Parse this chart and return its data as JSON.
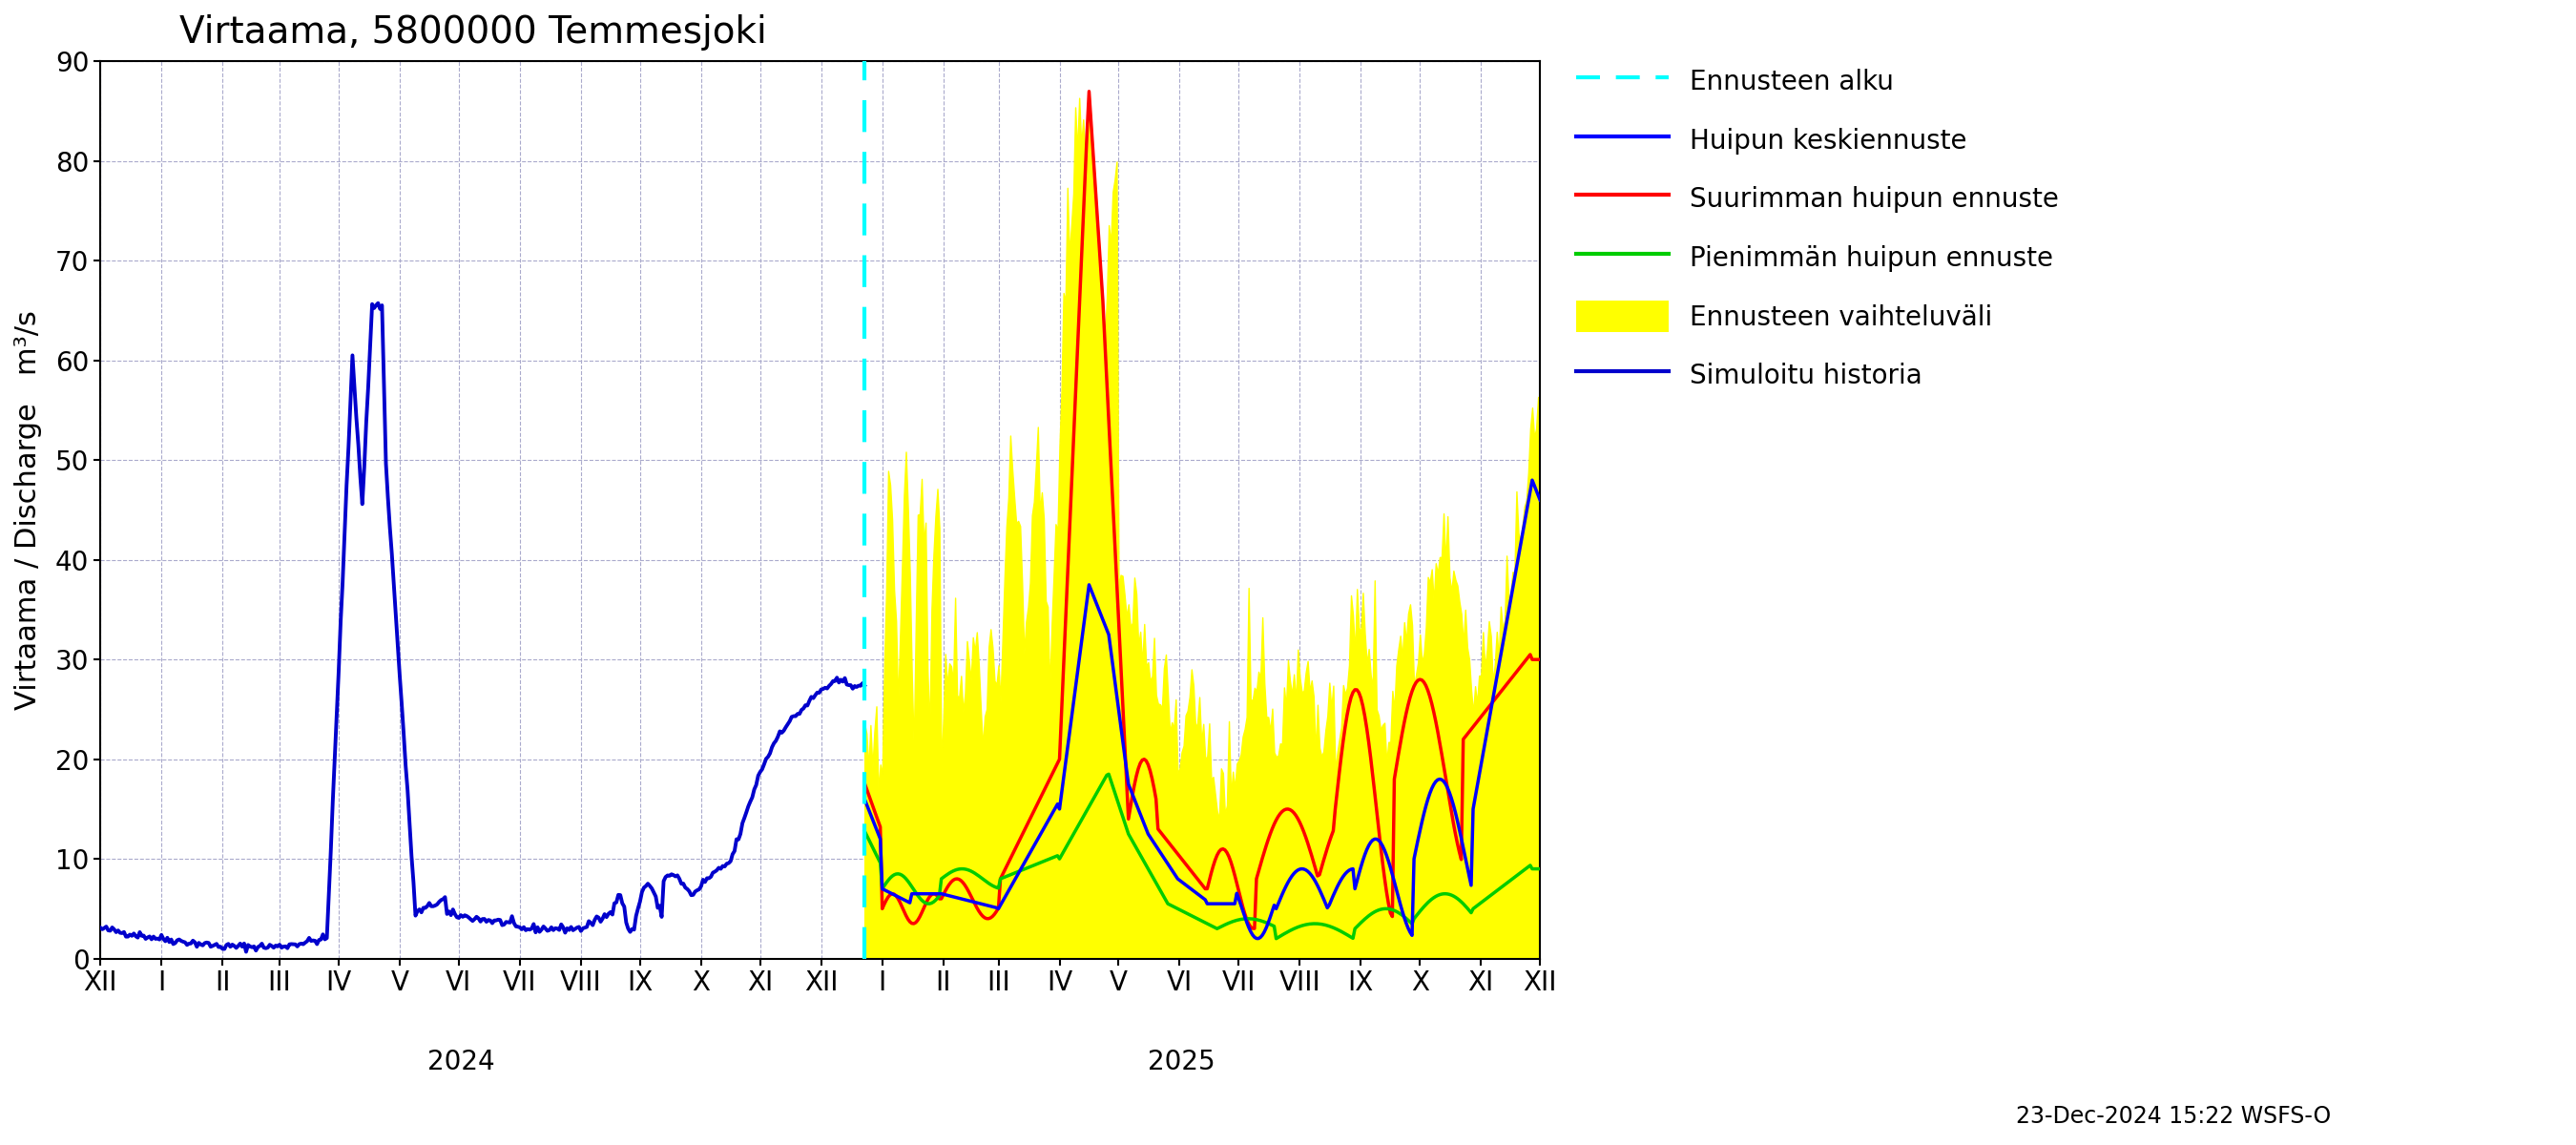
{
  "title": "Virtaama, 5800000 Temmesjoki",
  "ylabel_left": "Virtaama / Discharge   m³/s",
  "ylim": [
    0,
    90
  ],
  "yticks": [
    0,
    10,
    20,
    30,
    40,
    50,
    60,
    70,
    80,
    90
  ],
  "timestamp_label": "23-Dec-2024 15:22 WSFS-O",
  "colors": {
    "hist_blue": "#0000CC",
    "max_red": "#FF0000",
    "min_green": "#00CC00",
    "mean_blue": "#0000FF",
    "range_yellow": "#FFFF00",
    "forecast_line": "#00FFFF",
    "grid": "#AAAACC"
  },
  "background_color": "#FFFFFF"
}
